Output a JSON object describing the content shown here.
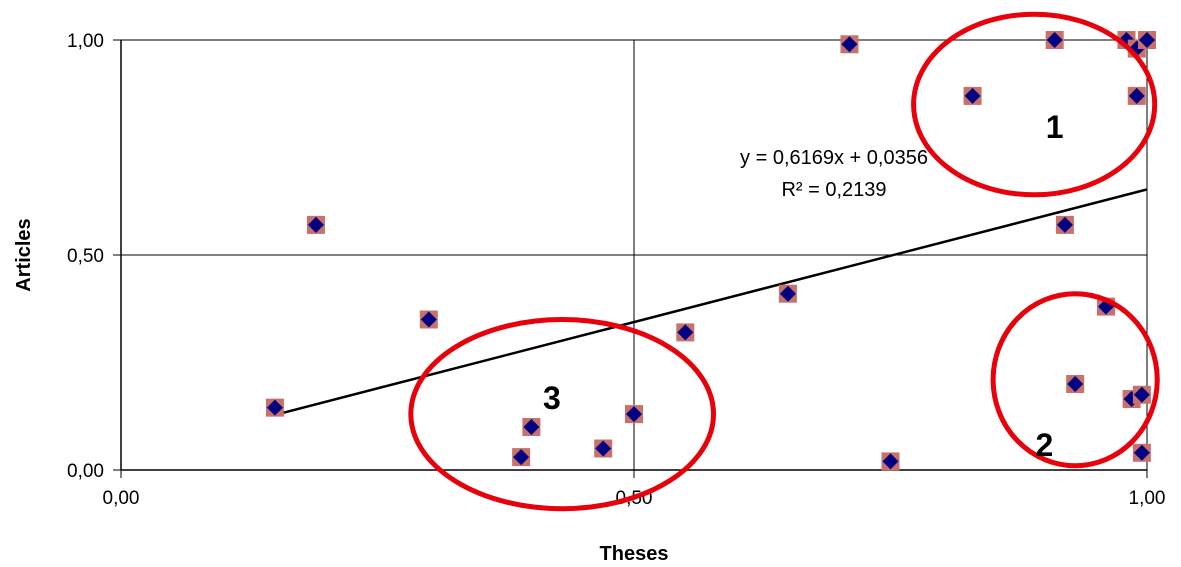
{
  "chart_data": {
    "type": "scatter",
    "title": "",
    "xlabel": "Theses",
    "ylabel": "Articles",
    "xlim": [
      0,
      1
    ],
    "ylim": [
      0,
      1
    ],
    "x_ticks": [
      "0,00",
      "0,50",
      "1,00"
    ],
    "y_ticks": [
      "0,00",
      "0,50",
      "1,00"
    ],
    "grid": true,
    "points": [
      {
        "x": 0.15,
        "y": 0.145
      },
      {
        "x": 0.19,
        "y": 0.57
      },
      {
        "x": 0.3,
        "y": 0.35
      },
      {
        "x": 0.39,
        "y": 0.03
      },
      {
        "x": 0.4,
        "y": 0.1
      },
      {
        "x": 0.47,
        "y": 0.05
      },
      {
        "x": 0.5,
        "y": 0.13
      },
      {
        "x": 0.55,
        "y": 0.32
      },
      {
        "x": 0.65,
        "y": 0.41
      },
      {
        "x": 0.71,
        "y": 0.99
      },
      {
        "x": 0.75,
        "y": 0.02
      },
      {
        "x": 0.83,
        "y": 0.87
      },
      {
        "x": 0.91,
        "y": 1.0
      },
      {
        "x": 0.92,
        "y": 0.57
      },
      {
        "x": 0.93,
        "y": 0.2
      },
      {
        "x": 0.96,
        "y": 0.38
      },
      {
        "x": 0.98,
        "y": 1.0
      },
      {
        "x": 0.99,
        "y": 0.98
      },
      {
        "x": 1.0,
        "y": 1.0
      },
      {
        "x": 0.99,
        "y": 0.87
      },
      {
        "x": 0.985,
        "y": 0.165
      },
      {
        "x": 0.995,
        "y": 0.175
      },
      {
        "x": 0.995,
        "y": 0.04
      }
    ],
    "trendline": {
      "slope": 0.6169,
      "intercept": 0.0356,
      "x_range": [
        0.15,
        1.0
      ],
      "equation": "y = 0,6169x + 0,0356",
      "r_squared": "R² = 0,2139"
    },
    "clusters": [
      {
        "label": "1",
        "cx": 0.89,
        "cy": 0.85,
        "rx": 0.235,
        "ry": 0.21
      },
      {
        "label": "2",
        "cx": 0.93,
        "cy": 0.21,
        "rx": 0.16,
        "ry": 0.2
      },
      {
        "label": "3",
        "cx": 0.43,
        "cy": 0.13,
        "rx": 0.295,
        "ry": 0.22
      }
    ],
    "colors": {
      "marker_fill": "#000080",
      "marker_square": "#c8706a",
      "trendline": "#000000",
      "cluster_outline": "#e8000b"
    }
  }
}
